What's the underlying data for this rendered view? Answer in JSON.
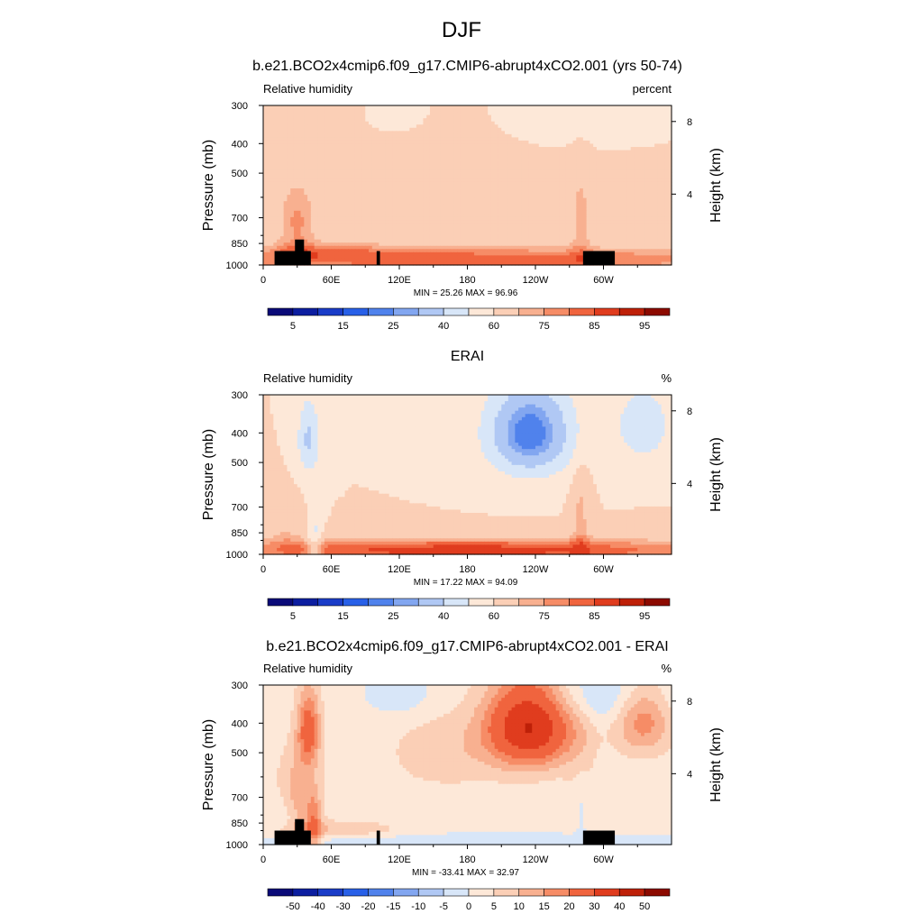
{
  "page": {
    "title": "DJF"
  },
  "colors": {
    "rh_levels": [
      5,
      10,
      15,
      20,
      25,
      30,
      40,
      50,
      60,
      70,
      75,
      80,
      85,
      90,
      95
    ],
    "rh_colors": [
      "#0a0a78",
      "#0c1ea0",
      "#1a3cc8",
      "#2860e8",
      "#5082ec",
      "#82a6f0",
      "#b0c8f4",
      "#d8e6f8",
      "#fde8d8",
      "#fbcfb6",
      "#f8b090",
      "#f68c66",
      "#f0643e",
      "#e03c1e",
      "#be2008",
      "#8c0a00"
    ],
    "diff_levels": [
      -50,
      -40,
      -30,
      -20,
      -15,
      -10,
      -5,
      0,
      5,
      10,
      15,
      20,
      30,
      40,
      50
    ],
    "diff_colors": [
      "#0a0a78",
      "#0c1ea0",
      "#1a3cc8",
      "#2860e8",
      "#5082ec",
      "#82a6f0",
      "#b0c8f4",
      "#d8e6f8",
      "#fde8d8",
      "#fbcfb6",
      "#f8b090",
      "#f68c66",
      "#f0643e",
      "#e03c1e",
      "#be2008",
      "#8c0a00"
    ]
  },
  "chart_data": [
    {
      "type": "heatmap",
      "title": "b.e21.BCO2x4cmip6.f09_g17.CMIP6-abrupt4xCO2.001 (yrs 50-74)",
      "left_label": "Relative humidity",
      "units": "percent",
      "xlabel": "",
      "ylabel": "Pressure (mb)",
      "y2label": "Height (km)",
      "x_ticks": [
        "0",
        "60E",
        "120E",
        "180",
        "120W",
        "60W"
      ],
      "y_ticks": [
        "300",
        "400",
        "500",
        "700",
        "850",
        "1000"
      ],
      "y2_ticks": [
        "8",
        "4"
      ],
      "stats": "MIN =  25.26   MAX =  96.96",
      "colorbar_labels": [
        "5",
        "15",
        "25",
        "40",
        "60",
        "75",
        "85",
        "95"
      ],
      "min": 25.26,
      "max": 96.96
    },
    {
      "type": "heatmap",
      "title": "ERAI",
      "left_label": "Relative humidity",
      "units": "%",
      "xlabel": "",
      "ylabel": "Pressure (mb)",
      "y2label": "Height (km)",
      "x_ticks": [
        "0",
        "60E",
        "120E",
        "180",
        "120W",
        "60W"
      ],
      "y_ticks": [
        "300",
        "400",
        "500",
        "700",
        "850",
        "1000"
      ],
      "y2_ticks": [
        "8",
        "4"
      ],
      "stats": "MIN =  17.22   MAX =  94.09",
      "colorbar_labels": [
        "5",
        "15",
        "25",
        "40",
        "60",
        "75",
        "85",
        "95"
      ],
      "min": 17.22,
      "max": 94.09
    },
    {
      "type": "heatmap",
      "title": "b.e21.BCO2x4cmip6.f09_g17.CMIP6-abrupt4xCO2.001 - ERAI",
      "left_label": "Relative humidity",
      "units": "%",
      "xlabel": "",
      "ylabel": "Pressure (mb)",
      "y2label": "Height (km)",
      "x_ticks": [
        "0",
        "60E",
        "120E",
        "180",
        "120W",
        "60W"
      ],
      "y_ticks": [
        "300",
        "400",
        "500",
        "700",
        "850",
        "1000"
      ],
      "y2_ticks": [
        "8",
        "4"
      ],
      "stats": "MIN = -33.41   MAX =  32.97",
      "colorbar_labels": [
        "-50",
        "-40",
        "-30",
        "-20",
        "-15",
        "-10",
        "-5",
        "0",
        "5",
        "10",
        "15",
        "20",
        "30",
        "40",
        "50"
      ],
      "min": -33.41,
      "max": 32.97
    }
  ]
}
